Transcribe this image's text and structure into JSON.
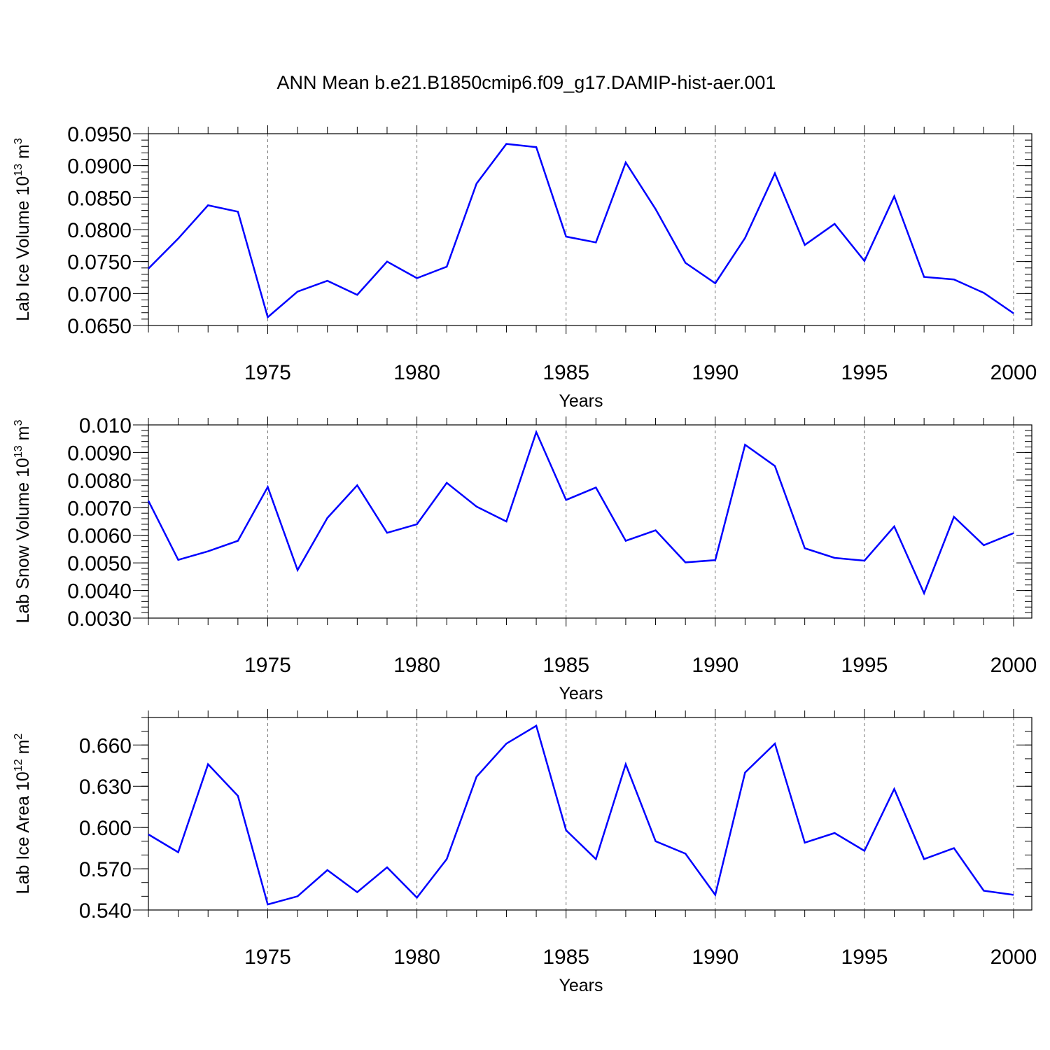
{
  "title": "ANN Mean b.e21.B1850cmip6.f09_g17.DAMIP-hist-aer.001",
  "line_color": "#0000ff",
  "chart_data": [
    {
      "type": "line",
      "ylabel": "Lab Ice Volume 10",
      "ylabel_exp": "13",
      "ylabel_unit": " m",
      "ylabel_unit_exp": "3",
      "xlabel": "Years",
      "xlim": [
        1971,
        2000
      ],
      "ylim": [
        0.065,
        0.095
      ],
      "x_ticks": [
        "1975",
        "1980",
        "1985",
        "1990",
        "1995",
        "2000"
      ],
      "y_ticks": [
        "0.0650",
        "0.0700",
        "0.0750",
        "0.0800",
        "0.0850",
        "0.0900",
        "0.0950"
      ],
      "y_tick_values": [
        0.065,
        0.07,
        0.075,
        0.08,
        0.085,
        0.09,
        0.095
      ],
      "y_minor_step": 0.001,
      "grid": "vertical dashed at 5-year ticks",
      "x": [
        1971,
        1972,
        1973,
        1974,
        1975,
        1976,
        1977,
        1978,
        1979,
        1980,
        1981,
        1982,
        1983,
        1984,
        1985,
        1986,
        1987,
        1988,
        1989,
        1990,
        1991,
        1992,
        1993,
        1994,
        1995,
        1996,
        1997,
        1998,
        1999,
        2000
      ],
      "series": [
        {
          "values": [
            0.0739,
            0.0786,
            0.0838,
            0.0828,
            0.0663,
            0.0703,
            0.072,
            0.0698,
            0.075,
            0.0724,
            0.0742,
            0.0872,
            0.0934,
            0.0929,
            0.0789,
            0.078,
            0.0905,
            0.0832,
            0.0748,
            0.0716,
            0.0787,
            0.0888,
            0.0776,
            0.0809,
            0.0751,
            0.0852,
            0.0726,
            0.0722,
            0.0701,
            0.0669
          ]
        }
      ]
    },
    {
      "type": "line",
      "ylabel": "Lab Snow Volume 10",
      "ylabel_exp": "13",
      "ylabel_unit": " m",
      "ylabel_unit_exp": "3",
      "xlabel": "Years",
      "xlim": [
        1971,
        2000
      ],
      "ylim": [
        0.003,
        0.01
      ],
      "x_ticks": [
        "1975",
        "1980",
        "1985",
        "1990",
        "1995",
        "2000"
      ],
      "y_ticks": [
        "0.0030",
        "0.0040",
        "0.0050",
        "0.0060",
        "0.0070",
        "0.0080",
        "0.0090",
        "0.010"
      ],
      "y_tick_values": [
        0.003,
        0.004,
        0.005,
        0.006,
        0.007,
        0.008,
        0.009,
        0.01
      ],
      "y_minor_step": 0.0002,
      "grid": "vertical dashed at 5-year ticks",
      "x": [
        1971,
        1972,
        1973,
        1974,
        1975,
        1976,
        1977,
        1978,
        1979,
        1980,
        1981,
        1982,
        1983,
        1984,
        1985,
        1986,
        1987,
        1988,
        1989,
        1990,
        1991,
        1992,
        1993,
        1994,
        1995,
        1996,
        1997,
        1998,
        1999,
        2000
      ],
      "series": [
        {
          "values": [
            0.00725,
            0.00511,
            0.00542,
            0.0058,
            0.00775,
            0.00474,
            0.00663,
            0.00781,
            0.00609,
            0.0064,
            0.0079,
            0.00704,
            0.0065,
            0.00974,
            0.00728,
            0.00773,
            0.0058,
            0.00618,
            0.00502,
            0.0051,
            0.00928,
            0.00851,
            0.00553,
            0.00518,
            0.00508,
            0.00632,
            0.0039,
            0.00667,
            0.00564,
            0.00608
          ]
        }
      ]
    },
    {
      "type": "line",
      "ylabel": "Lab Ice Area 10",
      "ylabel_exp": "12",
      "ylabel_unit": " m",
      "ylabel_unit_exp": "2",
      "xlabel": "Years",
      "xlim": [
        1971,
        2000
      ],
      "ylim": [
        0.54,
        0.68
      ],
      "x_ticks": [
        "1975",
        "1980",
        "1985",
        "1990",
        "1995",
        "2000"
      ],
      "y_ticks": [
        "0.540",
        "0.570",
        "0.600",
        "0.630",
        "0.660"
      ],
      "y_tick_values": [
        0.54,
        0.57,
        0.6,
        0.63,
        0.66
      ],
      "y_minor_step": 0.01,
      "grid": "vertical dashed at 5-year ticks",
      "x": [
        1971,
        1972,
        1973,
        1974,
        1975,
        1976,
        1977,
        1978,
        1979,
        1980,
        1981,
        1982,
        1983,
        1984,
        1985,
        1986,
        1987,
        1988,
        1989,
        1990,
        1991,
        1992,
        1993,
        1994,
        1995,
        1996,
        1997,
        1998,
        1999,
        2000
      ],
      "series": [
        {
          "values": [
            0.595,
            0.582,
            0.646,
            0.623,
            0.544,
            0.55,
            0.569,
            0.553,
            0.571,
            0.549,
            0.577,
            0.637,
            0.661,
            0.674,
            0.598,
            0.577,
            0.646,
            0.59,
            0.581,
            0.551,
            0.64,
            0.661,
            0.589,
            0.596,
            0.583,
            0.628,
            0.577,
            0.585,
            0.554,
            0.551
          ]
        }
      ]
    }
  ]
}
